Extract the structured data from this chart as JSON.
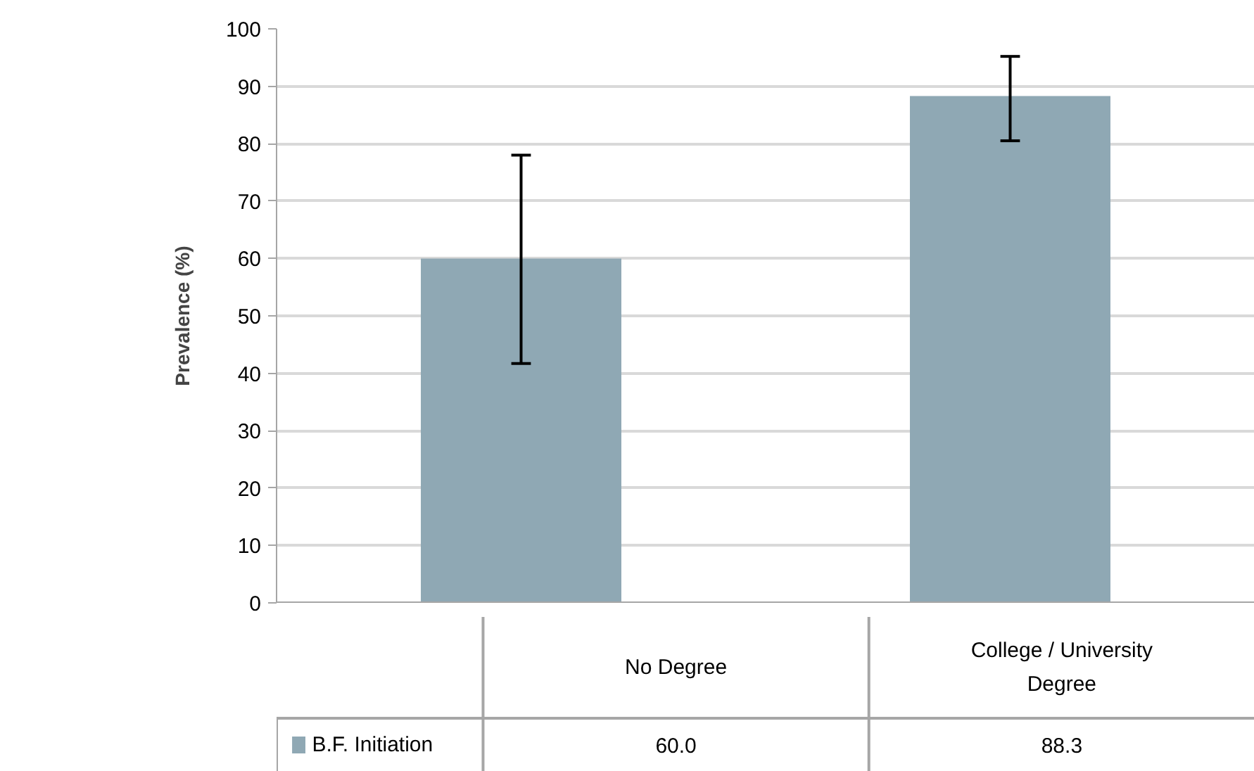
{
  "chart_data": {
    "type": "bar",
    "ylabel": "Prevalence (%)",
    "categories": [
      "No Degree",
      "College / University Degree"
    ],
    "series": [
      {
        "name": "B.F. Initiation",
        "color": "#8fa8b4",
        "values": [
          60.0,
          88.3
        ],
        "value_labels": [
          "60.0",
          "88.3"
        ],
        "errors": [
          [
            41.7,
            78.0
          ],
          [
            80.5,
            95.2
          ]
        ]
      }
    ],
    "ylim": [
      0,
      100
    ],
    "yticks": [
      0,
      10,
      20,
      30,
      40,
      50,
      60,
      70,
      80,
      90,
      100
    ],
    "grid": "y",
    "legend": "bottom"
  }
}
